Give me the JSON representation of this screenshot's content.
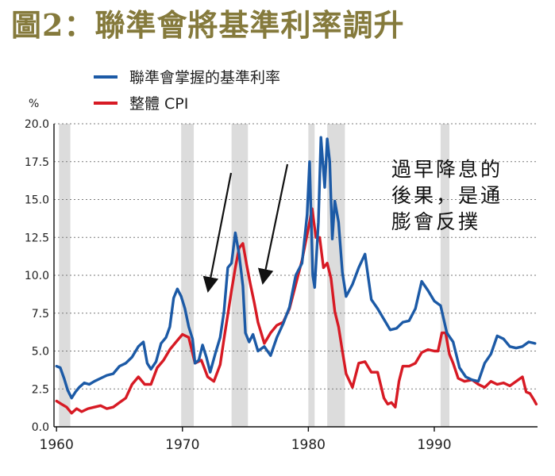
{
  "figure_title": "圖2：聯準會將基準利率調升",
  "chart_data": {
    "type": "line",
    "title": "圖2：聯準會將基準利率調升",
    "ylabel": "%",
    "xlabel": "",
    "xlim": [
      1959.8,
      1998.2
    ],
    "ylim": [
      0,
      20
    ],
    "yticks": [
      0,
      2.5,
      5,
      7.5,
      10,
      12.5,
      15,
      17.5,
      20
    ],
    "ytick_labels": [
      "0.0",
      "2.5",
      "5.0",
      "7.5",
      "10.0",
      "12.5",
      "15.0",
      "17.5",
      "20.0"
    ],
    "xticks": [
      1960,
      1970,
      1980,
      1990
    ],
    "xtick_labels": [
      "1960",
      "1970",
      "1980",
      "1990"
    ],
    "grid": "horizontal dashed",
    "legend_position": "top-left",
    "recessions": [
      [
        1960.2,
        1961.1
      ],
      [
        1969.9,
        1970.9
      ],
      [
        1973.9,
        1975.2
      ],
      [
        1980.0,
        1980.5
      ],
      [
        1981.5,
        1982.9
      ],
      [
        1990.5,
        1991.2
      ]
    ],
    "series": [
      {
        "name": "聯準會掌握的基準利率",
        "color": "#1c5aa6",
        "x": [
          1960.0,
          1960.3,
          1960.6,
          1960.9,
          1961.2,
          1961.5,
          1961.8,
          1962.2,
          1962.6,
          1963.0,
          1963.5,
          1964.0,
          1964.5,
          1965.0,
          1965.5,
          1966.0,
          1966.5,
          1966.9,
          1967.2,
          1967.5,
          1967.9,
          1968.3,
          1968.7,
          1969.0,
          1969.3,
          1969.6,
          1969.9,
          1970.2,
          1970.5,
          1970.8,
          1971.0,
          1971.3,
          1971.6,
          1971.9,
          1972.2,
          1972.6,
          1973.0,
          1973.3,
          1973.6,
          1973.9,
          1974.2,
          1974.5,
          1974.8,
          1975.0,
          1975.3,
          1975.6,
          1976.0,
          1976.5,
          1977.0,
          1977.5,
          1978.0,
          1978.5,
          1979.0,
          1979.5,
          1979.9,
          1980.1,
          1980.35,
          1980.5,
          1980.8,
          1981.0,
          1981.3,
          1981.5,
          1981.7,
          1981.9,
          1982.1,
          1982.4,
          1982.7,
          1983.0,
          1983.5,
          1984.0,
          1984.5,
          1985.0,
          1985.5,
          1986.0,
          1986.5,
          1987.0,
          1987.5,
          1988.0,
          1988.5,
          1989.0,
          1989.5,
          1990.0,
          1990.5,
          1991.0,
          1991.5,
          1992.0,
          1992.5,
          1993.0,
          1993.5,
          1994.0,
          1994.5,
          1995.0,
          1995.5,
          1996.0,
          1996.5,
          1997.0,
          1997.5,
          1998.0
        ],
        "values": [
          4.0,
          3.9,
          3.2,
          2.4,
          1.9,
          2.3,
          2.6,
          2.9,
          2.8,
          3.0,
          3.2,
          3.4,
          3.5,
          4.0,
          4.2,
          4.6,
          5.3,
          5.6,
          4.2,
          3.8,
          4.3,
          5.5,
          5.9,
          6.6,
          8.5,
          9.1,
          8.6,
          7.8,
          6.6,
          5.8,
          4.2,
          4.4,
          5.4,
          4.6,
          3.6,
          4.8,
          5.9,
          7.6,
          10.5,
          10.8,
          12.8,
          11.4,
          9.3,
          6.2,
          5.6,
          6.1,
          5.0,
          5.3,
          4.7,
          5.9,
          6.8,
          7.9,
          10.0,
          10.8,
          14.0,
          17.5,
          10.0,
          9.2,
          13.5,
          19.1,
          15.8,
          19.0,
          17.5,
          12.4,
          14.9,
          13.5,
          10.2,
          8.6,
          9.4,
          10.5,
          11.4,
          8.4,
          7.8,
          7.1,
          6.4,
          6.5,
          6.9,
          7.0,
          7.8,
          9.6,
          9.0,
          8.3,
          8.0,
          6.2,
          5.6,
          3.9,
          3.3,
          3.1,
          3.0,
          4.2,
          4.8,
          6.0,
          5.8,
          5.3,
          5.2,
          5.3,
          5.6,
          5.5
        ]
      },
      {
        "name": "整體 CPI",
        "color": "#d71a24",
        "x": [
          1960.0,
          1960.4,
          1960.8,
          1961.2,
          1961.6,
          1962.0,
          1962.5,
          1963.0,
          1963.5,
          1964.0,
          1964.5,
          1965.0,
          1965.5,
          1966.0,
          1966.5,
          1967.0,
          1967.5,
          1968.0,
          1968.5,
          1969.0,
          1969.5,
          1970.0,
          1970.5,
          1971.0,
          1971.5,
          1972.0,
          1972.5,
          1973.0,
          1973.3,
          1973.6,
          1973.9,
          1974.2,
          1974.5,
          1974.8,
          1975.1,
          1975.4,
          1975.7,
          1976.0,
          1976.5,
          1977.0,
          1977.5,
          1978.0,
          1978.5,
          1979.0,
          1979.5,
          1980.0,
          1980.3,
          1980.6,
          1980.9,
          1981.2,
          1981.5,
          1981.8,
          1982.1,
          1982.4,
          1982.7,
          1983.0,
          1983.5,
          1984.0,
          1984.5,
          1985.0,
          1985.5,
          1986.0,
          1986.3,
          1986.6,
          1986.9,
          1987.2,
          1987.5,
          1988.0,
          1988.5,
          1989.0,
          1989.5,
          1990.0,
          1990.3,
          1990.6,
          1990.9,
          1991.2,
          1991.5,
          1991.9,
          1992.4,
          1993.0,
          1993.5,
          1994.0,
          1994.5,
          1995.0,
          1995.5,
          1996.0,
          1996.5,
          1997.0,
          1997.3,
          1997.6,
          1997.9,
          1998.1
        ],
        "values": [
          1.7,
          1.5,
          1.3,
          0.9,
          1.2,
          1.0,
          1.2,
          1.3,
          1.4,
          1.2,
          1.3,
          1.6,
          1.9,
          2.8,
          3.3,
          2.8,
          2.8,
          3.9,
          4.4,
          5.1,
          5.6,
          6.1,
          5.9,
          4.2,
          4.4,
          3.3,
          3.0,
          4.1,
          5.8,
          7.4,
          9.0,
          10.5,
          11.8,
          12.1,
          10.7,
          9.4,
          8.2,
          6.9,
          5.5,
          6.2,
          6.7,
          6.9,
          7.8,
          9.4,
          11.0,
          13.1,
          14.4,
          12.5,
          12.5,
          10.5,
          10.8,
          9.8,
          7.6,
          6.6,
          5.0,
          3.5,
          2.6,
          4.2,
          4.3,
          3.6,
          3.6,
          1.9,
          1.5,
          1.6,
          1.3,
          3.0,
          4.0,
          4.0,
          4.2,
          4.9,
          5.1,
          5.0,
          5.0,
          6.2,
          6.2,
          4.8,
          4.2,
          3.2,
          3.0,
          3.1,
          2.8,
          2.6,
          3.0,
          2.8,
          2.9,
          2.7,
          3.0,
          3.3,
          2.3,
          2.2,
          1.8,
          1.5
        ]
      }
    ],
    "annotations": [
      {
        "text_lines": [
          "過早降息的",
          "後果，是通",
          "膨會反撲"
        ],
        "arrow_targets": [
          1971.0,
          1975.7
        ]
      }
    ]
  }
}
